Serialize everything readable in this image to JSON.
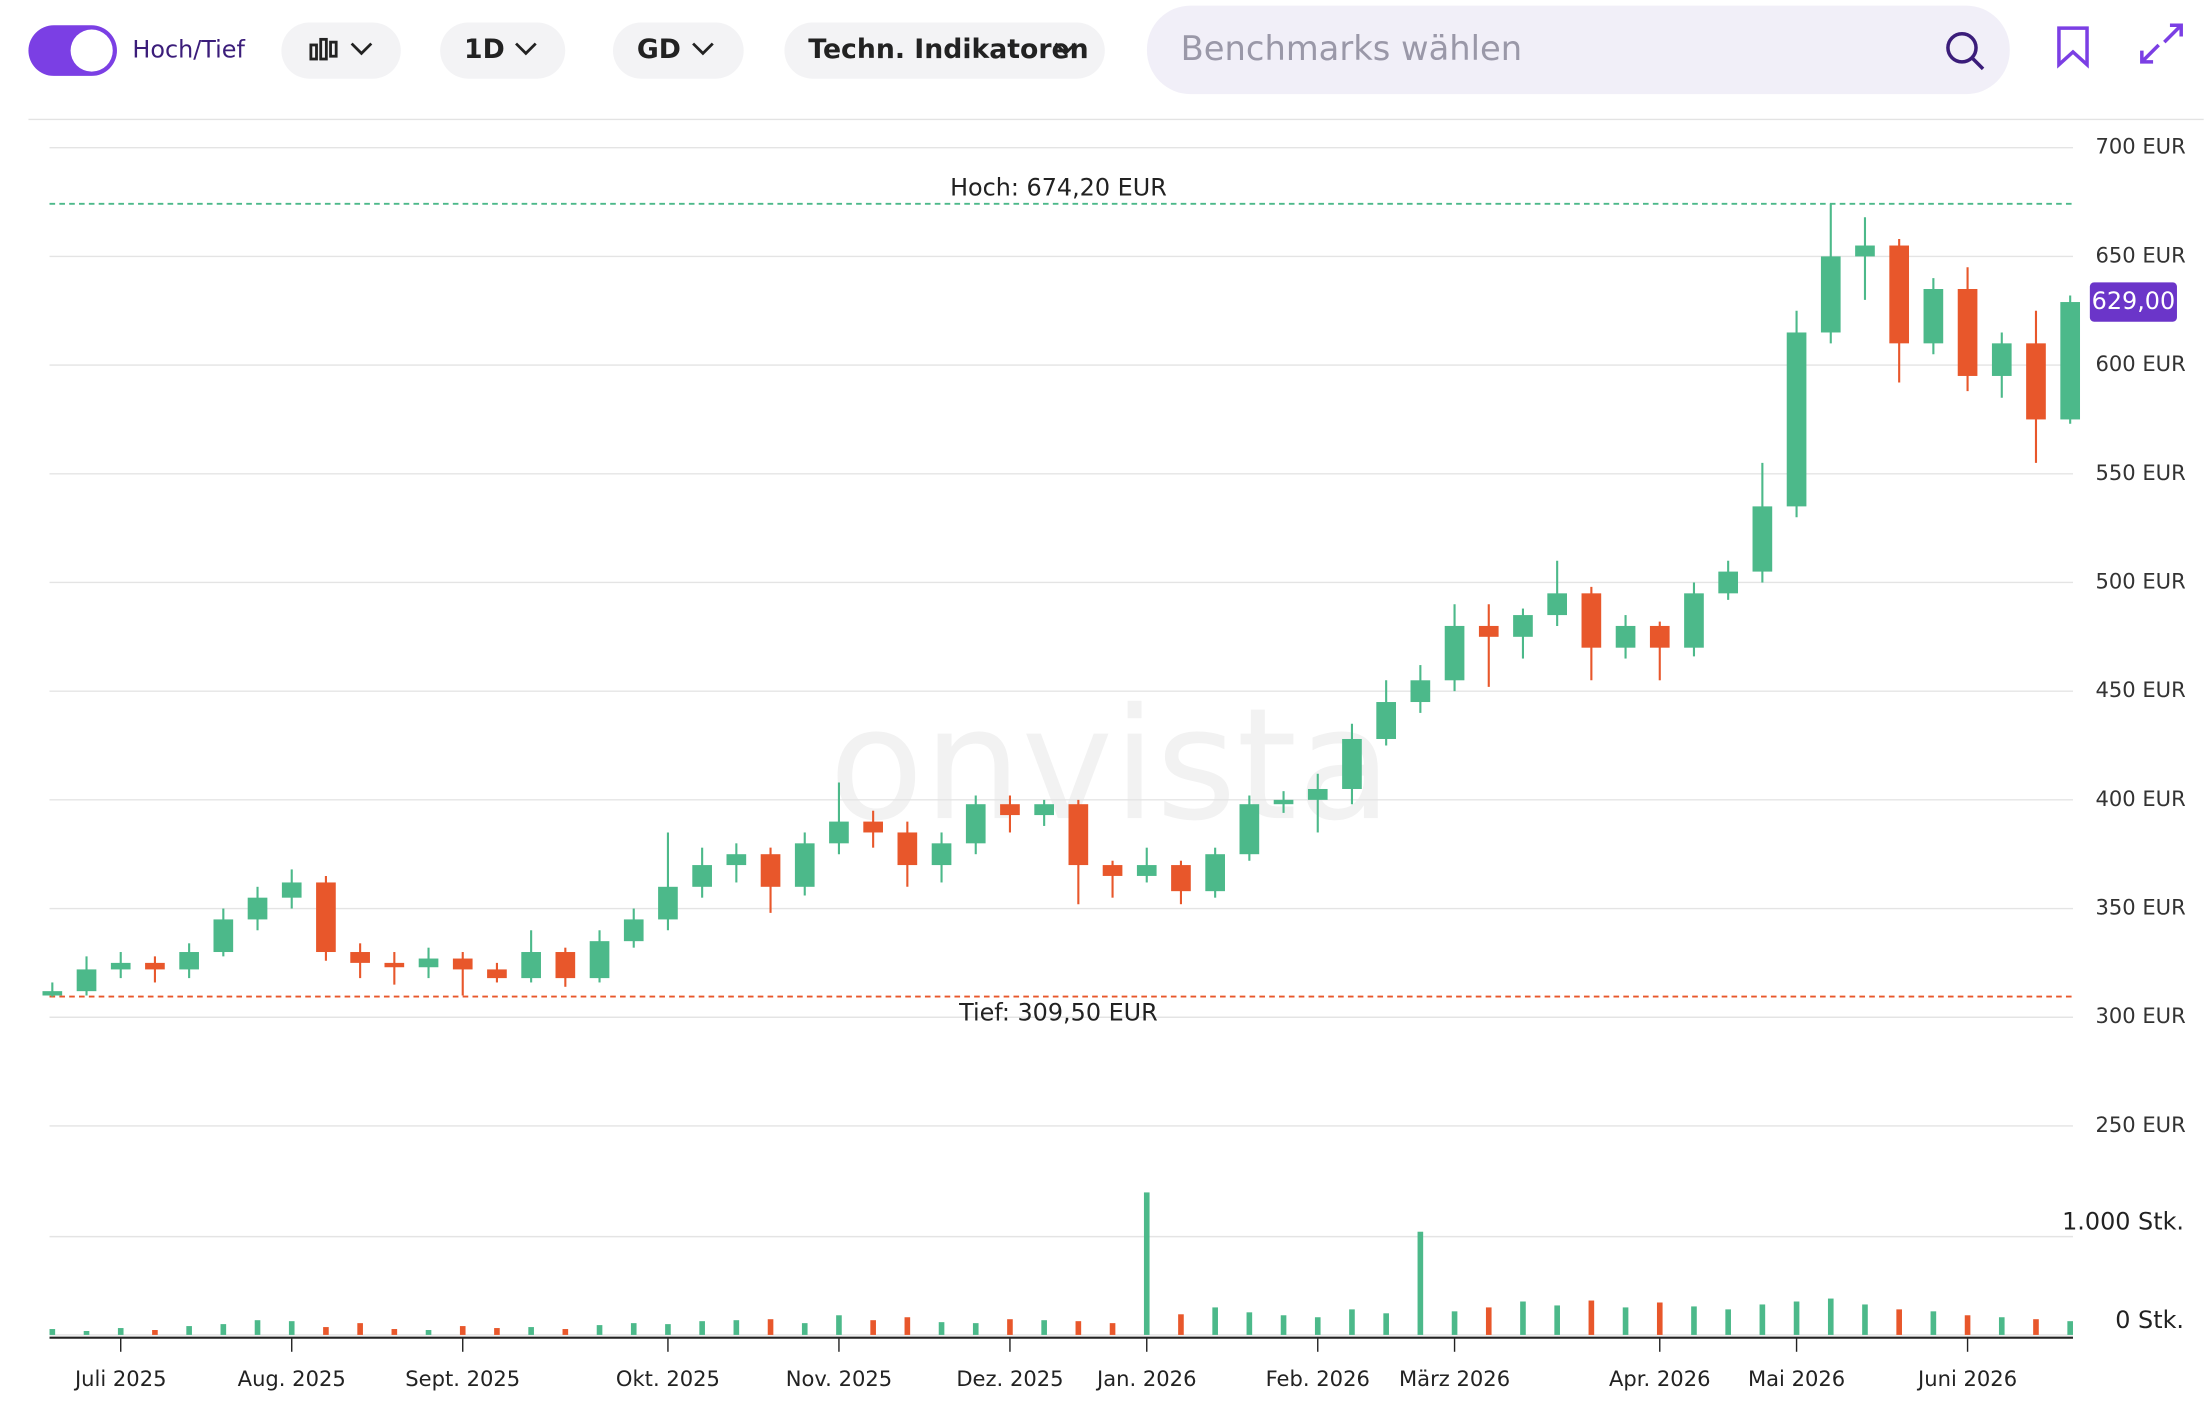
{
  "toolbar": {
    "toggle_label": "Hoch/Tief",
    "interval": "1D",
    "average": "GD",
    "indicators": "Techn. Indikatoren",
    "search_placeholder": "Benchmarks wählen"
  },
  "chart_data": {
    "type": "candlestick",
    "watermark": "onvista",
    "up_color": "#4cb98a",
    "down_color": "#e8572b",
    "categories": [
      null,
      null,
      "Juli 2025",
      null,
      null,
      null,
      null,
      "Aug. 2025",
      null,
      null,
      null,
      null,
      "Sept. 2025",
      null,
      null,
      null,
      null,
      null,
      "Okt. 2025",
      null,
      null,
      null,
      null,
      "Nov. 2025",
      null,
      null,
      null,
      null,
      "Dez. 2025",
      null,
      null,
      null,
      "Jan. 2026",
      null,
      null,
      null,
      null,
      "Feb. 2026",
      null,
      null,
      null,
      "März 2026",
      null,
      null,
      null,
      null,
      null,
      "Apr. 2026",
      null,
      null,
      null,
      "Mai 2026",
      null,
      null,
      null,
      null,
      "Juni 2026",
      null,
      null,
      null
    ],
    "open": [
      310,
      312,
      322,
      325,
      322,
      330,
      345,
      355,
      362,
      330,
      325,
      323,
      327,
      322,
      318,
      330,
      318,
      335,
      345,
      360,
      370,
      375,
      360,
      380,
      390,
      385,
      370,
      380,
      398,
      393,
      398,
      370,
      365,
      370,
      358,
      375,
      398,
      400,
      405,
      428,
      445,
      455,
      480,
      475,
      485,
      495,
      470,
      480,
      470,
      495,
      505,
      535,
      615,
      650,
      655,
      610,
      635,
      595,
      610,
      575
    ],
    "high": [
      316,
      328,
      330,
      328,
      334,
      350,
      360,
      368,
      365,
      334,
      330,
      332,
      330,
      325,
      340,
      332,
      340,
      350,
      385,
      378,
      380,
      378,
      385,
      408,
      395,
      390,
      385,
      402,
      402,
      400,
      400,
      372,
      378,
      372,
      378,
      402,
      404,
      412,
      435,
      455,
      462,
      490,
      490,
      488,
      510,
      498,
      485,
      482,
      500,
      510,
      555,
      625,
      674.2,
      668,
      658,
      640,
      645,
      615,
      625,
      632
    ],
    "low": [
      309.5,
      310,
      318,
      316,
      318,
      328,
      340,
      350,
      326,
      318,
      315,
      318,
      310,
      316,
      316,
      314,
      316,
      332,
      340,
      355,
      362,
      348,
      356,
      375,
      378,
      360,
      362,
      375,
      385,
      388,
      352,
      355,
      362,
      352,
      355,
      372,
      394,
      385,
      398,
      425,
      440,
      450,
      452,
      465,
      480,
      455,
      465,
      455,
      466,
      492,
      500,
      530,
      610,
      630,
      592,
      605,
      588,
      585,
      555,
      573
    ],
    "close": [
      312,
      322,
      325,
      322,
      330,
      345,
      355,
      362,
      330,
      325,
      323,
      327,
      322,
      318,
      330,
      318,
      335,
      345,
      360,
      370,
      375,
      360,
      380,
      390,
      385,
      370,
      380,
      398,
      393,
      398,
      370,
      365,
      370,
      358,
      375,
      398,
      400,
      405,
      428,
      445,
      455,
      480,
      475,
      485,
      495,
      470,
      480,
      470,
      495,
      505,
      535,
      615,
      650,
      655,
      610,
      635,
      595,
      610,
      575,
      629
    ],
    "ylim": [
      245,
      713
    ],
    "yticks": [
      {
        "value": 250,
        "label": "250 EUR"
      },
      {
        "value": 300,
        "label": "300 EUR"
      },
      {
        "value": 350,
        "label": "350 EUR"
      },
      {
        "value": 400,
        "label": "400 EUR"
      },
      {
        "value": 450,
        "label": "450 EUR"
      },
      {
        "value": 500,
        "label": "500 EUR"
      },
      {
        "value": 550,
        "label": "550 EUR"
      },
      {
        "value": 600,
        "label": "600 EUR"
      },
      {
        "value": 650,
        "label": "650 EUR"
      },
      {
        "value": 700,
        "label": "700 EUR"
      }
    ],
    "annotations": [
      {
        "text": "Hoch: 674,20 EUR",
        "value": 674.2,
        "color": "#4cb98a"
      },
      {
        "text": "Tief: 309,50 EUR",
        "value": 309.5,
        "color": "#e8572b"
      }
    ],
    "last_price": {
      "value": 629,
      "label": "629,00",
      "color": "#6b35c9"
    },
    "volume": {
      "values": [
        60,
        40,
        70,
        50,
        90,
        110,
        150,
        140,
        80,
        120,
        60,
        50,
        90,
        70,
        80,
        60,
        100,
        120,
        110,
        140,
        150,
        160,
        120,
        200,
        150,
        180,
        130,
        120,
        160,
        150,
        140,
        120,
        1450,
        210,
        280,
        230,
        200,
        180,
        260,
        220,
        1050,
        240,
        280,
        340,
        300,
        350,
        280,
        330,
        290,
        260,
        310,
        340,
        370,
        310,
        260,
        240,
        200,
        180,
        160,
        140
      ],
      "ylim": [
        0,
        1930
      ],
      "yticks": [
        {
          "value": 0,
          "label": "0 Stk."
        },
        {
          "value": 1000,
          "label": "1.000 Stk."
        }
      ]
    }
  }
}
